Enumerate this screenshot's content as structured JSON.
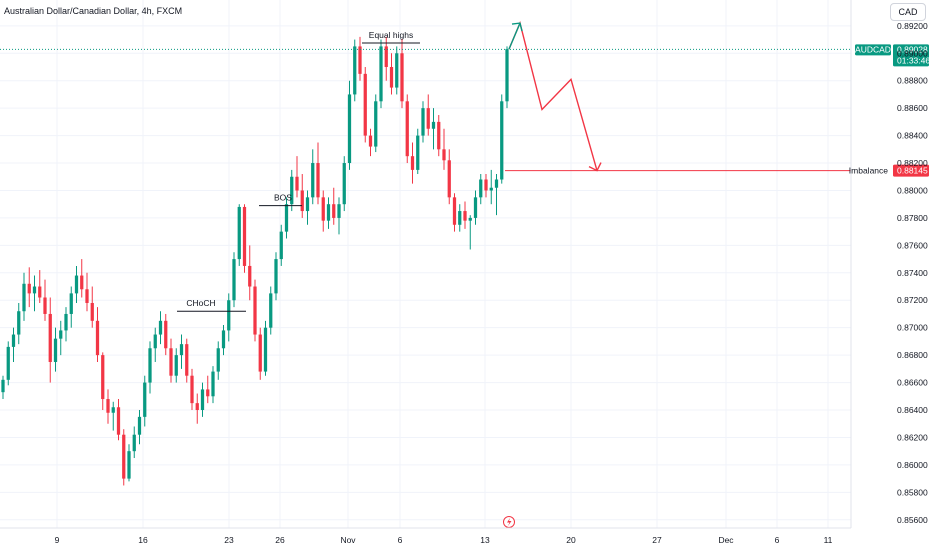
{
  "header": {
    "title": "Australian Dollar/Canadian Dollar, 4h, FXCM",
    "currency_button": "CAD"
  },
  "chart_data": {
    "type": "candlestick",
    "symbol": "AUDCAD",
    "timeframe": "4h",
    "broker": "FXCM",
    "y_ticks": [
      "0.89200",
      "0.89000",
      "0.88800",
      "0.88600",
      "0.88400",
      "0.88200",
      "0.88000",
      "0.87800",
      "0.87600",
      "0.87400",
      "0.87200",
      "0.87000",
      "0.86800",
      "0.86600",
      "0.86400",
      "0.86200",
      "0.86000",
      "0.85800",
      "0.85600"
    ],
    "x_ticks": [
      "9",
      "16",
      "23",
      "26",
      "Nov",
      "6",
      "13",
      "20",
      "27",
      "Dec",
      "6",
      "11"
    ],
    "ylim": [
      0.8554,
      0.8933
    ],
    "last_price": {
      "label": "AUDCAD",
      "value": "0.89028",
      "countdown": "01:33:46"
    },
    "imbalance": {
      "label": "Imbalance",
      "value": "0.88145"
    },
    "annotations": [
      "Equal highs",
      "BOS",
      "CHoCH"
    ],
    "colors": {
      "up": "#089981",
      "down": "#f23645",
      "projection": "#f23645",
      "projection_tip": "#089981",
      "price_line": "#089981"
    },
    "candles": [
      [
        0.8653,
        0.8665,
        0.8648,
        0.8662
      ],
      [
        0.8662,
        0.869,
        0.8658,
        0.8686
      ],
      [
        0.8686,
        0.87,
        0.8675,
        0.8695
      ],
      [
        0.8695,
        0.8718,
        0.8688,
        0.8712
      ],
      [
        0.8712,
        0.874,
        0.8705,
        0.8732
      ],
      [
        0.8732,
        0.8744,
        0.8715,
        0.8725
      ],
      [
        0.8725,
        0.8738,
        0.8712,
        0.873
      ],
      [
        0.873,
        0.8742,
        0.8718,
        0.8722
      ],
      [
        0.8722,
        0.8735,
        0.8705,
        0.871
      ],
      [
        0.871,
        0.8722,
        0.866,
        0.8675
      ],
      [
        0.8675,
        0.87,
        0.8668,
        0.8692
      ],
      [
        0.8692,
        0.8705,
        0.868,
        0.8698
      ],
      [
        0.8698,
        0.8715,
        0.869,
        0.871
      ],
      [
        0.871,
        0.873,
        0.87,
        0.8725
      ],
      [
        0.8725,
        0.8745,
        0.8718,
        0.8738
      ],
      [
        0.8738,
        0.875,
        0.8722,
        0.8728
      ],
      [
        0.8728,
        0.874,
        0.8712,
        0.8718
      ],
      [
        0.8718,
        0.873,
        0.87,
        0.8705
      ],
      [
        0.8705,
        0.8715,
        0.8675,
        0.868
      ],
      [
        0.868,
        0.8682,
        0.864,
        0.8648
      ],
      [
        0.8648,
        0.8655,
        0.863,
        0.8638
      ],
      [
        0.8638,
        0.8646,
        0.8625,
        0.8642
      ],
      [
        0.8642,
        0.8648,
        0.8618,
        0.8622
      ],
      [
        0.8622,
        0.8626,
        0.8585,
        0.859
      ],
      [
        0.859,
        0.8615,
        0.8588,
        0.861
      ],
      [
        0.861,
        0.8628,
        0.8605,
        0.8622
      ],
      [
        0.8622,
        0.864,
        0.8615,
        0.8635
      ],
      [
        0.8635,
        0.8665,
        0.8628,
        0.866
      ],
      [
        0.866,
        0.869,
        0.8652,
        0.8685
      ],
      [
        0.8685,
        0.87,
        0.8675,
        0.8695
      ],
      [
        0.8695,
        0.8712,
        0.8688,
        0.8705
      ],
      [
        0.8705,
        0.871,
        0.868,
        0.8685
      ],
      [
        0.8685,
        0.8692,
        0.866,
        0.8665
      ],
      [
        0.8665,
        0.8685,
        0.866,
        0.868
      ],
      [
        0.868,
        0.8695,
        0.867,
        0.8688
      ],
      [
        0.8688,
        0.8692,
        0.866,
        0.8665
      ],
      [
        0.8665,
        0.867,
        0.864,
        0.8645
      ],
      [
        0.8645,
        0.8652,
        0.863,
        0.864
      ],
      [
        0.864,
        0.866,
        0.8635,
        0.8655
      ],
      [
        0.8655,
        0.8665,
        0.8645,
        0.865
      ],
      [
        0.865,
        0.8672,
        0.8645,
        0.8668
      ],
      [
        0.8668,
        0.869,
        0.8662,
        0.8685
      ],
      [
        0.8685,
        0.8702,
        0.868,
        0.8698
      ],
      [
        0.8698,
        0.8725,
        0.869,
        0.872
      ],
      [
        0.872,
        0.8755,
        0.8715,
        0.875
      ],
      [
        0.875,
        0.879,
        0.8745,
        0.8788
      ],
      [
        0.8788,
        0.879,
        0.874,
        0.8745
      ],
      [
        0.8745,
        0.876,
        0.872,
        0.873
      ],
      [
        0.873,
        0.8735,
        0.869,
        0.8695
      ],
      [
        0.8695,
        0.87,
        0.8662,
        0.8668
      ],
      [
        0.8668,
        0.8705,
        0.8665,
        0.87
      ],
      [
        0.87,
        0.873,
        0.8695,
        0.8725
      ],
      [
        0.8725,
        0.8755,
        0.872,
        0.875
      ],
      [
        0.875,
        0.8775,
        0.8745,
        0.877
      ],
      [
        0.877,
        0.8795,
        0.8765,
        0.879
      ],
      [
        0.879,
        0.8815,
        0.8785,
        0.881
      ],
      [
        0.881,
        0.8825,
        0.8795,
        0.88
      ],
      [
        0.88,
        0.8812,
        0.878,
        0.8785
      ],
      [
        0.8785,
        0.88,
        0.8775,
        0.8795
      ],
      [
        0.8795,
        0.883,
        0.879,
        0.882
      ],
      [
        0.882,
        0.8835,
        0.879,
        0.8795
      ],
      [
        0.8795,
        0.88,
        0.877,
        0.8778
      ],
      [
        0.8778,
        0.8795,
        0.8772,
        0.879
      ],
      [
        0.879,
        0.8802,
        0.8775,
        0.878
      ],
      [
        0.878,
        0.8795,
        0.8768,
        0.879
      ],
      [
        0.879,
        0.8825,
        0.8785,
        0.882
      ],
      [
        0.882,
        0.888,
        0.8815,
        0.887
      ],
      [
        0.887,
        0.891,
        0.8865,
        0.8905
      ],
      [
        0.8905,
        0.8912,
        0.888,
        0.8885
      ],
      [
        0.8885,
        0.889,
        0.8835,
        0.884
      ],
      [
        0.884,
        0.8845,
        0.8825,
        0.8832
      ],
      [
        0.8832,
        0.887,
        0.8828,
        0.8865
      ],
      [
        0.8865,
        0.891,
        0.886,
        0.8905
      ],
      [
        0.8905,
        0.8912,
        0.888,
        0.889
      ],
      [
        0.889,
        0.89,
        0.887,
        0.8875
      ],
      [
        0.8875,
        0.8905,
        0.887,
        0.89
      ],
      [
        0.89,
        0.891,
        0.886,
        0.8865
      ],
      [
        0.8865,
        0.887,
        0.882,
        0.8825
      ],
      [
        0.8825,
        0.8835,
        0.8805,
        0.8815
      ],
      [
        0.8815,
        0.8845,
        0.8812,
        0.884
      ],
      [
        0.884,
        0.8865,
        0.8835,
        0.886
      ],
      [
        0.886,
        0.887,
        0.884,
        0.8845
      ],
      [
        0.8845,
        0.886,
        0.883,
        0.885
      ],
      [
        0.885,
        0.8855,
        0.8825,
        0.883
      ],
      [
        0.883,
        0.8845,
        0.8815,
        0.8822
      ],
      [
        0.8822,
        0.883,
        0.879,
        0.8795
      ],
      [
        0.8795,
        0.8798,
        0.877,
        0.8775
      ],
      [
        0.8775,
        0.879,
        0.877,
        0.8785
      ],
      [
        0.8785,
        0.8792,
        0.8772,
        0.8778
      ],
      [
        0.8778,
        0.8782,
        0.8757,
        0.878
      ],
      [
        0.878,
        0.88,
        0.8775,
        0.8795
      ],
      [
        0.8795,
        0.8812,
        0.879,
        0.8808
      ],
      [
        0.8808,
        0.8812,
        0.8795,
        0.88
      ],
      [
        0.88,
        0.8815,
        0.879,
        0.8802
      ],
      [
        0.8802,
        0.8812,
        0.8782,
        0.8808
      ],
      [
        0.8808,
        0.887,
        0.8805,
        0.8865
      ],
      [
        0.8865,
        0.8905,
        0.886,
        0.8903
      ]
    ]
  }
}
